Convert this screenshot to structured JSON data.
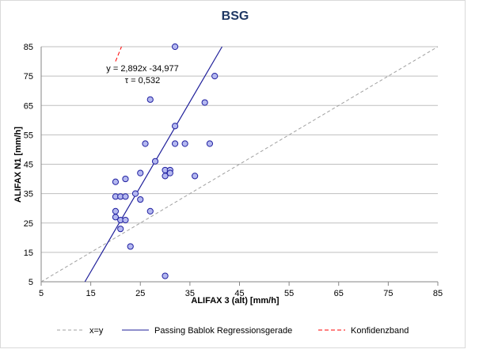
{
  "chart_data": {
    "type": "scatter",
    "title": "BSG",
    "xlabel": "ALIFAX 3 (alt) [mm/h]",
    "ylabel": "ALIFAX N1  [mm/h]",
    "xlim": [
      5,
      85
    ],
    "ylim": [
      5,
      85
    ],
    "xticks": [
      5,
      15,
      25,
      35,
      45,
      55,
      65,
      75,
      85
    ],
    "yticks": [
      5,
      15,
      25,
      35,
      45,
      55,
      65,
      75,
      85
    ],
    "grid": "horizontal",
    "points": [
      [
        32,
        85
      ],
      [
        40,
        75
      ],
      [
        38,
        66
      ],
      [
        27,
        67
      ],
      [
        32,
        58
      ],
      [
        26,
        52
      ],
      [
        32,
        52
      ],
      [
        34,
        52
      ],
      [
        39,
        52
      ],
      [
        28,
        46
      ],
      [
        25,
        42
      ],
      [
        30,
        43
      ],
      [
        31,
        43
      ],
      [
        30,
        41
      ],
      [
        31,
        42
      ],
      [
        36,
        41
      ],
      [
        20,
        39
      ],
      [
        22,
        40
      ],
      [
        20,
        34
      ],
      [
        21,
        34
      ],
      [
        22,
        34
      ],
      [
        24,
        35
      ],
      [
        25,
        33
      ],
      [
        20,
        29
      ],
      [
        20,
        27
      ],
      [
        27,
        29
      ],
      [
        21,
        26
      ],
      [
        22,
        26
      ],
      [
        21,
        23
      ],
      [
        23,
        17
      ],
      [
        30,
        7
      ]
    ],
    "regression": {
      "slope": 2.892,
      "intercept": -34.977
    },
    "confidence_band": [
      [
        20,
        80
      ],
      [
        21.2,
        85
      ]
    ],
    "annotation": [
      "y = 2,892x -34,977",
      "τ = 0,532"
    ],
    "legend": {
      "placement": "bottom",
      "entries": [
        "x=y",
        "Passing Bablok Regressionsgerade",
        "Konfidenzband"
      ]
    },
    "colors": {
      "points": "#b4b8f0",
      "point_edge": "#1f1fa0",
      "regression": "#1f1f9a",
      "identity": "#a0a0a0",
      "band": "#ff0000",
      "grid": "#bfbfbf"
    }
  }
}
